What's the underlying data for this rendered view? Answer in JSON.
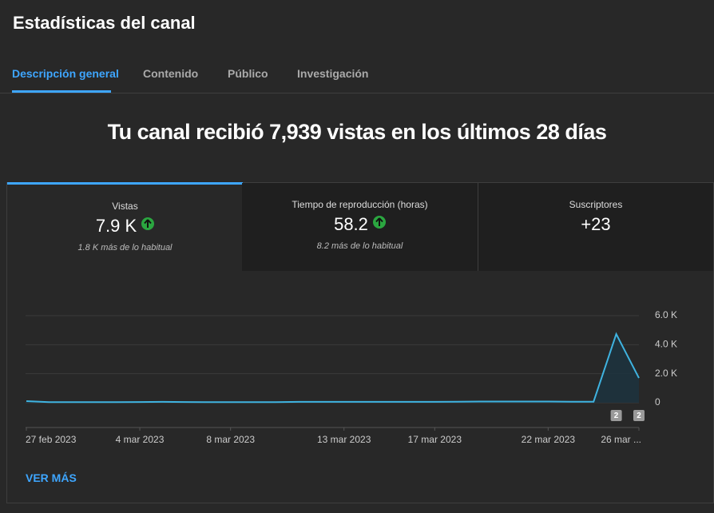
{
  "header": {
    "title": "Estadísticas del canal"
  },
  "tabs": [
    "Descripción general",
    "Contenido",
    "Público",
    "Investigación"
  ],
  "headline": "Tu canal recibió 7,939 vistas en los últimos 28 días",
  "metrics": [
    {
      "label": "Vistas",
      "value": "7.9 K",
      "note": "1.8 K más de lo habitual"
    },
    {
      "label": "Tiempo de reproducción (horas)",
      "value": "58.2",
      "note": "8.2 más de lo habitual"
    },
    {
      "label": "Suscriptores",
      "value": "+23"
    }
  ],
  "chart_data": {
    "type": "line",
    "x": [
      "27 feb 2023",
      null,
      null,
      null,
      null,
      "4 mar 2023",
      null,
      null,
      null,
      "8 mar 2023",
      null,
      null,
      null,
      null,
      "13 mar 2023",
      null,
      null,
      null,
      "17 mar 2023",
      null,
      null,
      null,
      null,
      "22 mar 2023",
      null,
      null,
      null,
      "26 mar ..."
    ],
    "values": [
      110,
      40,
      40,
      40,
      40,
      50,
      60,
      50,
      40,
      40,
      40,
      40,
      60,
      60,
      60,
      60,
      60,
      60,
      60,
      70,
      80,
      80,
      80,
      80,
      70,
      70,
      4730,
      1700
    ],
    "color": "#3fb3e0",
    "ylim": [
      0,
      6000
    ],
    "yticks": [
      0,
      {
        "value": 2000,
        "label": "2.0 K"
      },
      {
        "value": 4000,
        "label": "4.0 K"
      },
      {
        "value": 6000,
        "label": "6.0 K"
      }
    ],
    "grid": true,
    "markers": [
      "2",
      "2"
    ]
  },
  "link": "VER MÁS"
}
